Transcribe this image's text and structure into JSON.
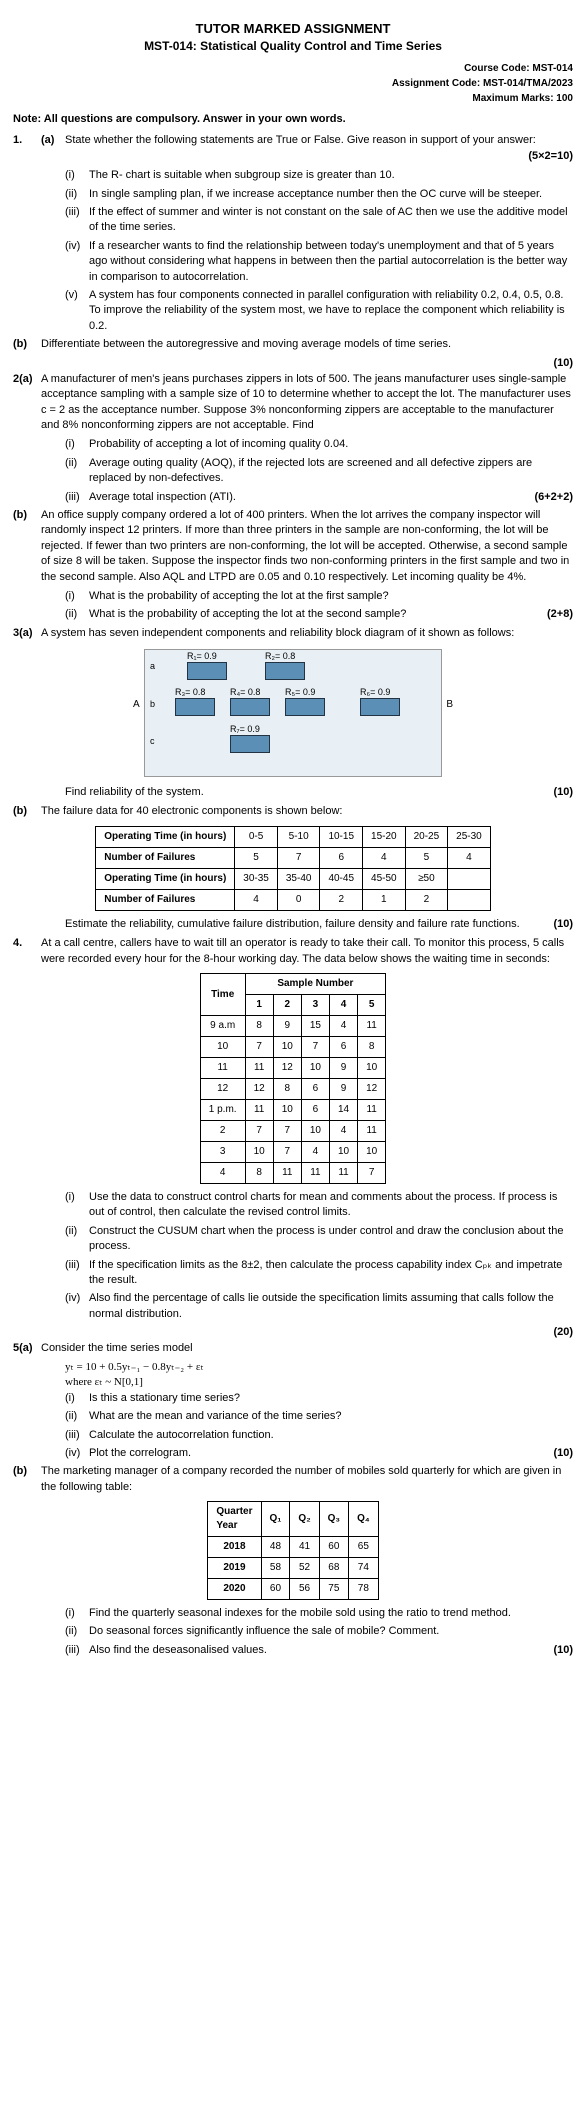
{
  "header": {
    "main": "TUTOR MARKED ASSIGNMENT",
    "sub": "MST-014: Statistical Quality Control and Time Series",
    "course": "Course Code: MST-014",
    "assign": "Assignment Code: MST-014/TMA/2023",
    "marks": "Maximum Marks: 100"
  },
  "note": "Note: All questions are compulsory. Answer in your own words.",
  "q1": {
    "a": "State whether the following statements are True or False. Give reason in support of your answer:",
    "a_marks": "(5×2=10)",
    "i": "The R- chart is suitable when subgroup size is greater than 10.",
    "ii": "In single sampling plan, if we increase acceptance number then the OC curve will be steeper.",
    "iii": "If the effect of summer and winter is not constant on the sale of AC then we use the additive model of the time series.",
    "iv": "If a researcher wants to find the relationship between today's unemployment and that of 5 years ago without considering what happens in between then the partial autocorrelation is the better way in comparison to autocorrelation.",
    "v": "A system has four components connected in parallel configuration with reliability 0.2, 0.4, 0.5, 0.8. To improve the reliability of the system most, we have to replace the component which reliability is 0.2.",
    "b": "Differentiate between the autoregressive and moving average models of time series.",
    "b_marks": "(10)"
  },
  "q2": {
    "a": "A manufacturer of men's jeans purchases zippers in lots of 500. The jeans manufacturer uses single-sample acceptance sampling with a sample size of 10 to determine whether to accept the lot. The manufacturer uses c = 2 as the acceptance number. Suppose 3% nonconforming zippers are acceptable to the manufacturer and 8% nonconforming zippers are not acceptable. Find",
    "ai": "Probability of accepting a lot of incoming quality 0.04.",
    "aii": "Average outing quality (AOQ), if the rejected lots are screened and all defective zippers are replaced by non-defectives.",
    "aiii": "Average total inspection (ATI).",
    "a_marks": "(6+2+2)",
    "b": "An office supply company ordered a lot of 400 printers. When the lot arrives the company inspector will randomly inspect 12 printers. If more than three printers in the sample are non-conforming, the lot will be rejected. If fewer than two printers are non-conforming, the lot will be accepted. Otherwise, a second sample of size 8 will be taken. Suppose the inspector finds two non-conforming printers in the first sample and two in the second sample. Also AQL and LTPD are 0.05 and 0.10 respectively. Let incoming quality be 4%.",
    "bi": "What is the probability of accepting the lot at the first sample?",
    "bii": "What is the probability of accepting the lot at the second sample?",
    "b_marks": "(2+8)"
  },
  "q3": {
    "a": "A system has seven independent components and reliability block diagram of it shown as follows:",
    "r": {
      "r1": "R₁= 0.9",
      "r2": "R₂= 0.8",
      "r3": "R₃= 0.8",
      "r4": "R₄= 0.8",
      "r5": "R₅= 0.9",
      "r6": "R₆= 0.9",
      "r7": "R₇= 0.9"
    },
    "find": "Find reliability of the system.",
    "a_marks": "(10)",
    "b": "The failure data for 40 electronic components is shown below:",
    "table1": {
      "row1h": "Operating Time (in hours)",
      "row1": [
        "0-5",
        "5-10",
        "10-15",
        "15-20",
        "20-25",
        "25-30"
      ],
      "row2h": "Number of Failures",
      "row2": [
        "5",
        "7",
        "6",
        "4",
        "5",
        "4"
      ],
      "row3h": "Operating Time (in hours)",
      "row3": [
        "30-35",
        "35-40",
        "40-45",
        "45-50",
        "≥50",
        ""
      ],
      "row4h": "Number of Failures",
      "row4": [
        "4",
        "0",
        "2",
        "1",
        "2",
        ""
      ]
    },
    "b_text": "Estimate the reliability, cumulative failure distribution, failure density and failure rate functions.",
    "b_marks": "(10)"
  },
  "q4": {
    "intro": "At a call centre, callers have to wait till an operator is ready to take their call. To monitor this process, 5 calls were recorded every hour for the 8-hour working day. The data below shows the waiting time in seconds:",
    "th_time": "Time",
    "th_sample": "Sample Number",
    "cols": [
      "1",
      "2",
      "3",
      "4",
      "5"
    ],
    "rows": [
      {
        "t": "9 a.m",
        "v": [
          "8",
          "9",
          "15",
          "4",
          "11"
        ]
      },
      {
        "t": "10",
        "v": [
          "7",
          "10",
          "7",
          "6",
          "8"
        ]
      },
      {
        "t": "11",
        "v": [
          "11",
          "12",
          "10",
          "9",
          "10"
        ]
      },
      {
        "t": "12",
        "v": [
          "12",
          "8",
          "6",
          "9",
          "12"
        ]
      },
      {
        "t": "1 p.m.",
        "v": [
          "11",
          "10",
          "6",
          "14",
          "11"
        ]
      },
      {
        "t": "2",
        "v": [
          "7",
          "7",
          "10",
          "4",
          "11"
        ]
      },
      {
        "t": "3",
        "v": [
          "10",
          "7",
          "4",
          "10",
          "10"
        ]
      },
      {
        "t": "4",
        "v": [
          "8",
          "11",
          "11",
          "11",
          "7"
        ]
      }
    ],
    "i": "Use the data to construct control charts for mean and comments about the process. If process is out of control, then calculate the revised control limits.",
    "ii": "Construct the CUSUM chart when the process is under control and draw the conclusion about the process.",
    "iii": "If the specification limits as the 8±2, then calculate the process capability index Cₚₖ and impetrate the result.",
    "iv": "Also find the percentage of calls lie outside the specification limits assuming that calls follow the normal distribution.",
    "marks": "(20)"
  },
  "q5": {
    "a": "Consider the time series model",
    "eq": "yₜ = 10 + 0.5yₜ₋₁ − 0.8yₜ₋₂ + εₜ",
    "where": "where εₜ ~ N[0,1]",
    "ai": "Is this a stationary time series?",
    "aii": "What are the mean and variance of the time series?",
    "aiii": "Calculate the autocorrelation function.",
    "aiv": "Plot the correlogram.",
    "a_marks": "(10)",
    "b": "The marketing manager of a company recorded the number of mobiles sold quarterly for which are given in the following table:",
    "th_q": "Quarter",
    "th_y": "Year",
    "qcols": [
      "Q₁",
      "Q₂",
      "Q₃",
      "Q₄"
    ],
    "brows": [
      {
        "y": "2018",
        "v": [
          "48",
          "41",
          "60",
          "65"
        ]
      },
      {
        "y": "2019",
        "v": [
          "58",
          "52",
          "68",
          "74"
        ]
      },
      {
        "y": "2020",
        "v": [
          "60",
          "56",
          "75",
          "78"
        ]
      }
    ],
    "bi": "Find the quarterly seasonal indexes for the mobile sold using the ratio to trend method.",
    "bii": "Do seasonal forces significantly influence the sale of mobile? Comment.",
    "biii": "Also find the deseasonalised values.",
    "b_marks": "(10)"
  }
}
